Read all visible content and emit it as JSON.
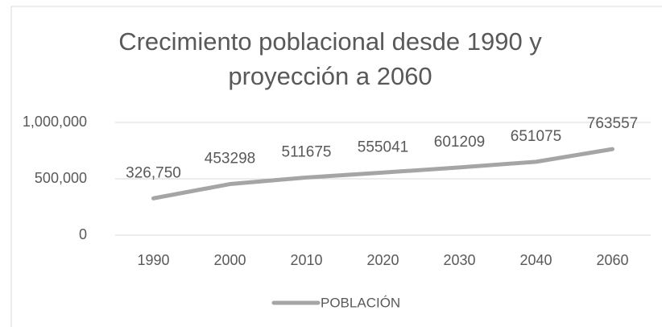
{
  "chart_data": {
    "type": "line",
    "title": "Crecimiento poblacional desde 1990 y proyección a 2060",
    "categories": [
      "1990",
      "2000",
      "2010",
      "2020",
      "2030",
      "2040",
      "2060"
    ],
    "series": [
      {
        "name": "POBLACIÓN",
        "color": "#a5a5a5",
        "values": [
          326750,
          453298,
          511675,
          555041,
          601209,
          651075,
          763557
        ],
        "value_labels": [
          "326,750",
          "453298",
          "511675",
          "555041",
          "601209",
          "651075",
          "763557"
        ]
      }
    ],
    "ylim": [
      0,
      1000000
    ],
    "yticks": [
      0,
      {
        "value": 500000,
        "label": "500,000"
      },
      {
        "value": 1000000,
        "label": "1,000,000"
      }
    ],
    "grid": true,
    "legend": "bottom"
  }
}
